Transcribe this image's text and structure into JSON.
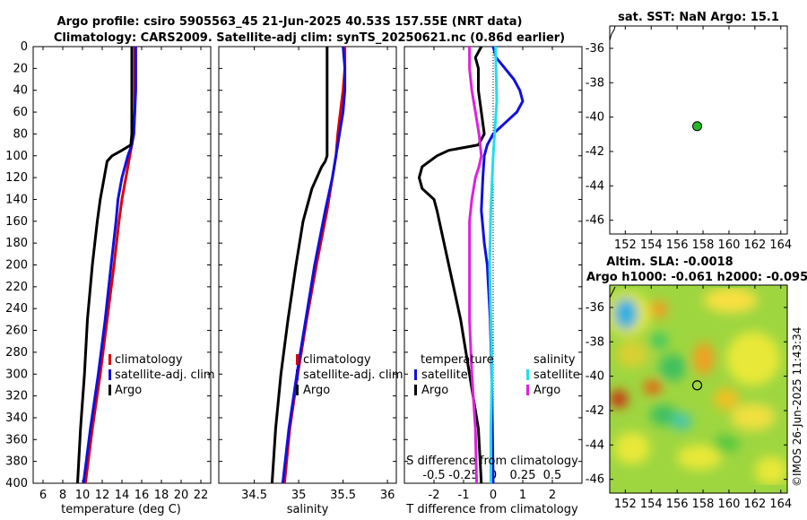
{
  "title": {
    "line1": "Argo profile: csiro 5905563_45 21-Jun-2025 40.53S 157.55E (NRT data)",
    "line2": "Climatology: CARS2009. Satellite-adj clim: synTS_20250621.nc (0.86d earlier)"
  },
  "colors": {
    "climatology": "#e00000",
    "satellite": "#1010e0",
    "argo": "#000000",
    "sat_sal": "#22ddee",
    "argo_sal": "#dd22dd"
  },
  "depth_axis": {
    "ticks": [
      0,
      20,
      40,
      60,
      80,
      100,
      120,
      140,
      160,
      180,
      200,
      220,
      240,
      260,
      280,
      300,
      320,
      340,
      360,
      380,
      400
    ],
    "labels": [
      "0",
      "20",
      "40",
      "60",
      "80",
      "100",
      "120",
      "140",
      "160",
      "180",
      "200",
      "220",
      "240",
      "260",
      "280",
      "300",
      "320",
      "340",
      "360",
      "380",
      "400"
    ],
    "range": [
      0,
      400
    ]
  },
  "chart_data": [
    {
      "type": "line",
      "id": "temperature",
      "xlabel": "temperature (deg C)",
      "xlim": [
        5,
        23
      ],
      "xticks": [
        6,
        8,
        10,
        12,
        14,
        16,
        18,
        20,
        22
      ],
      "xtick_labels": [
        "6",
        "8",
        "10",
        "12",
        "14",
        "16",
        "18",
        "20",
        "22"
      ],
      "legend": [
        "climatology",
        "satellite-adj. clim",
        "Argo"
      ],
      "series": [
        {
          "name": "climatology",
          "depth": [
            0,
            20,
            40,
            60,
            80,
            90,
            100,
            120,
            140,
            160,
            200,
            250,
            300,
            350,
            400
          ],
          "values": [
            15.3,
            15.3,
            15.3,
            15.3,
            15.2,
            15.0,
            14.8,
            14.4,
            14.0,
            13.7,
            13.2,
            12.5,
            11.8,
            11.0,
            10.3
          ]
        },
        {
          "name": "satellite-adj. clim",
          "depth": [
            0,
            20,
            40,
            60,
            80,
            90,
            100,
            120,
            140,
            160,
            200,
            250,
            300,
            350,
            400
          ],
          "values": [
            15.4,
            15.4,
            15.4,
            15.3,
            15.2,
            15.0,
            14.6,
            14.0,
            13.6,
            13.4,
            12.9,
            12.3,
            11.6,
            10.8,
            10.1
          ]
        },
        {
          "name": "Argo",
          "depth": [
            0,
            20,
            40,
            60,
            80,
            90,
            95,
            100,
            105,
            110,
            120,
            140,
            160,
            200,
            250,
            300,
            350,
            400
          ],
          "values": [
            15.0,
            15.0,
            15.0,
            15.0,
            15.0,
            14.9,
            14.0,
            13.0,
            12.5,
            12.4,
            12.2,
            11.8,
            11.5,
            11.0,
            10.5,
            10.2,
            9.8,
            9.5
          ]
        }
      ]
    },
    {
      "type": "line",
      "id": "salinity",
      "xlabel": "salinity",
      "xlim": [
        34.1,
        36.1
      ],
      "xticks": [
        34.5,
        35,
        35.5,
        36
      ],
      "xtick_labels": [
        "34.5",
        "35",
        "35.5",
        "36"
      ],
      "legend": [
        "climatology",
        "satellite-adj. clim",
        "Argo"
      ],
      "series": [
        {
          "name": "climatology",
          "depth": [
            0,
            20,
            40,
            60,
            80,
            100,
            120,
            150,
            200,
            250,
            300,
            350,
            400
          ],
          "values": [
            35.52,
            35.52,
            35.5,
            35.47,
            35.44,
            35.42,
            35.38,
            35.32,
            35.2,
            35.09,
            34.99,
            34.9,
            34.84
          ]
        },
        {
          "name": "satellite-adj. clim",
          "depth": [
            0,
            20,
            40,
            60,
            80,
            100,
            120,
            150,
            200,
            250,
            300,
            350,
            400
          ],
          "values": [
            35.5,
            35.52,
            35.52,
            35.5,
            35.46,
            35.42,
            35.38,
            35.3,
            35.18,
            35.08,
            34.98,
            34.89,
            34.82
          ]
        },
        {
          "name": "Argo",
          "depth": [
            0,
            20,
            40,
            60,
            80,
            100,
            105,
            110,
            130,
            160,
            200,
            250,
            300,
            350,
            400
          ],
          "values": [
            35.32,
            35.32,
            35.32,
            35.32,
            35.32,
            35.32,
            35.3,
            35.26,
            35.15,
            35.05,
            34.97,
            34.88,
            34.8,
            34.74,
            34.7
          ]
        }
      ]
    },
    {
      "type": "line",
      "id": "difference",
      "xlabel": "T difference from climatology",
      "xlim": [
        -3,
        3
      ],
      "xticks": [
        -2,
        -1,
        0,
        1,
        2
      ],
      "xtick_labels": [
        "-2",
        "-1",
        "0",
        "1",
        "2"
      ],
      "top_axis_label": "S difference from climatology",
      "top_ticks": [
        -0.5,
        -0.25,
        0,
        0.25,
        0.5
      ],
      "top_tick_labels": [
        "-0.5",
        "-0.25",
        "0",
        "0.25",
        "0.5"
      ],
      "legend_temperature": {
        "header": "temperature",
        "items": [
          "satellite",
          "Argo"
        ]
      },
      "legend_salinity": {
        "header": "salinity",
        "items": [
          "satellite",
          "Argo"
        ]
      },
      "series": [
        {
          "name": "T satellite",
          "depth": [
            0,
            10,
            20,
            30,
            40,
            50,
            60,
            70,
            80,
            90,
            100,
            120,
            150,
            180,
            200,
            250,
            300,
            400
          ],
          "values": [
            0.0,
            0.1,
            0.4,
            0.7,
            0.9,
            1.0,
            0.8,
            0.4,
            0.0,
            -0.2,
            -0.3,
            -0.35,
            -0.4,
            -0.3,
            -0.2,
            -0.1,
            -0.05,
            0.0
          ]
        },
        {
          "name": "T Argo",
          "depth": [
            0,
            5,
            10,
            20,
            40,
            60,
            80,
            90,
            95,
            100,
            110,
            120,
            130,
            140,
            150,
            200,
            250,
            300,
            350,
            400
          ],
          "values": [
            -0.4,
            -0.5,
            -0.6,
            -0.5,
            -0.5,
            -0.4,
            -0.3,
            -0.5,
            -1.5,
            -1.9,
            -2.4,
            -2.5,
            -2.4,
            -2.0,
            -1.9,
            -1.5,
            -1.1,
            -0.8,
            -0.5,
            -0.4
          ]
        },
        {
          "name": "S satellite",
          "depth": [
            0,
            50,
            100,
            150,
            200,
            250,
            300,
            350,
            400
          ],
          "values": [
            0.02,
            0.03,
            0.0,
            -0.02,
            -0.03,
            -0.02,
            -0.01,
            -0.02,
            -0.02
          ]
        },
        {
          "name": "S Argo",
          "depth": [
            0,
            20,
            40,
            60,
            80,
            100,
            110,
            120,
            140,
            160,
            200,
            250,
            300,
            350,
            400
          ],
          "values": [
            -0.2,
            -0.2,
            -0.18,
            -0.15,
            -0.12,
            -0.1,
            -0.12,
            -0.15,
            -0.18,
            -0.2,
            -0.2,
            -0.2,
            -0.18,
            -0.15,
            -0.14
          ]
        }
      ]
    }
  ],
  "sst_map": {
    "title": "sat. SST: NaN Argo: 15.1",
    "ytick_labels": [
      "-36",
      "-38",
      "-40",
      "-42",
      "-44",
      "-46"
    ],
    "yticks": [
      -36,
      -38,
      -40,
      -42,
      -44,
      -46
    ],
    "xtick_labels": [
      "152",
      "154",
      "156",
      "158",
      "160",
      "162",
      "164"
    ],
    "xticks": [
      152,
      154,
      156,
      158,
      160,
      162,
      164
    ],
    "lon_range": [
      150.8,
      164.5
    ],
    "lat_range": [
      -34.7,
      -46.8
    ],
    "argo_lon": 157.55,
    "argo_lat": -40.53
  },
  "sla_map": {
    "title_line1": "Altim. SLA: -0.0018",
    "title_line2": "Argo h1000: -0.061 h2000: -0.095",
    "ytick_labels": [
      "-36",
      "-38",
      "-40",
      "-42",
      "-44",
      "-46"
    ],
    "yticks": [
      -36,
      -38,
      -40,
      -42,
      -44,
      -46
    ],
    "xtick_labels": [
      "152",
      "154",
      "156",
      "158",
      "160",
      "162",
      "164"
    ],
    "xticks": [
      152,
      154,
      156,
      158,
      160,
      162,
      164
    ],
    "lon_range": [
      150.8,
      164.5
    ],
    "lat_range": [
      -34.7,
      -46.8
    ],
    "argo_lon": 157.55,
    "argo_lat": -40.53
  },
  "watermark": "©IMOS 26-Jun-2025 11:43:34"
}
